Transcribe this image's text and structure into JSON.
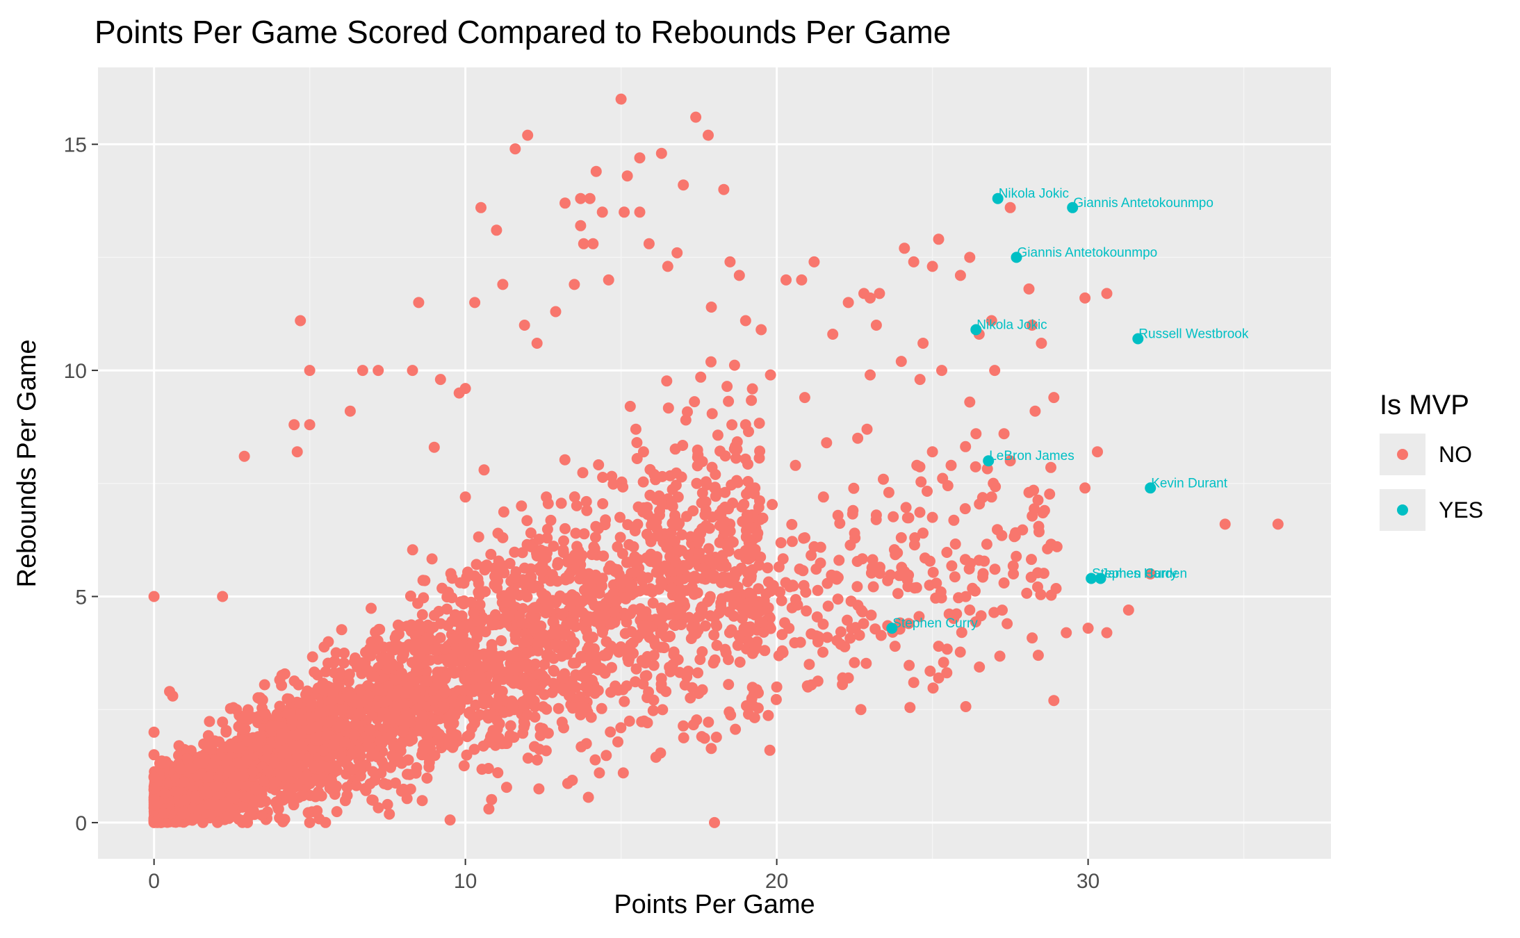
{
  "chart_data": {
    "type": "scatter",
    "title": "Points Per Game Scored Compared to Rebounds Per Game",
    "xlabel": "Points Per Game",
    "ylabel": "Rebounds Per Game",
    "xlim": [
      -1.8,
      37.8
    ],
    "ylim": [
      -0.8,
      16.7
    ],
    "x_ticks": [
      0,
      10,
      20,
      30
    ],
    "y_ticks": [
      0,
      5,
      10,
      15
    ],
    "x_tick_labels": [
      "0",
      "10",
      "20",
      "30"
    ],
    "y_tick_labels": [
      "0",
      "5",
      "10",
      "15"
    ],
    "grid": true,
    "legend": {
      "title": "Is MVP",
      "position": "right",
      "entries": [
        {
          "label": "NO",
          "color": "#F8766D"
        },
        {
          "label": "YES",
          "color": "#00BFC4"
        }
      ]
    },
    "colors": {
      "NO": "#F8766D",
      "YES": "#00BFC4",
      "panel": "#EBEBEB",
      "grid_major": "#FFFFFF",
      "grid_minor": "#F5F5F5"
    },
    "series": [
      {
        "name": "NO",
        "points": [
          [
            0,
            5.0
          ],
          [
            0,
            2.0
          ],
          [
            0,
            1.5
          ],
          [
            0,
            1.0
          ],
          [
            0,
            0.5
          ],
          [
            0,
            0.0
          ],
          [
            0.3,
            0.2
          ],
          [
            0.5,
            2.9
          ],
          [
            0.6,
            2.8
          ],
          [
            0.8,
            1.7
          ],
          [
            1.0,
            0.5
          ],
          [
            1.2,
            1.2
          ],
          [
            1.5,
            0.3
          ],
          [
            2.0,
            0.8
          ],
          [
            2.2,
            5.0
          ],
          [
            2.9,
            8.1
          ],
          [
            3.0,
            0.0
          ],
          [
            4.0,
            0.3
          ],
          [
            4.5,
            8.8
          ],
          [
            4.6,
            8.2
          ],
          [
            4.7,
            11.1
          ],
          [
            5.0,
            0.0
          ],
          [
            5.0,
            10.0
          ],
          [
            5.0,
            8.8
          ],
          [
            6.3,
            9.1
          ],
          [
            6.7,
            10.0
          ],
          [
            7.2,
            10.0
          ],
          [
            7.5,
            0.4
          ],
          [
            7.0,
            0.5
          ],
          [
            8.3,
            10.0
          ],
          [
            8.5,
            11.5
          ],
          [
            9.2,
            9.8
          ],
          [
            9.0,
            8.3
          ],
          [
            9.8,
            9.5
          ],
          [
            10.0,
            9.6
          ],
          [
            10.5,
            13.6
          ],
          [
            10.3,
            11.5
          ],
          [
            11.0,
            13.1
          ],
          [
            11.2,
            11.9
          ],
          [
            11.6,
            14.9
          ],
          [
            12.0,
            15.2
          ],
          [
            11.9,
            11.0
          ],
          [
            12.3,
            10.6
          ],
          [
            12.9,
            11.3
          ],
          [
            13.2,
            13.7
          ],
          [
            13.5,
            11.9
          ],
          [
            13.7,
            13.8
          ],
          [
            13.7,
            13.2
          ],
          [
            13.8,
            12.8
          ],
          [
            14.0,
            13.8
          ],
          [
            14.1,
            12.8
          ],
          [
            14.2,
            14.4
          ],
          [
            14.4,
            13.5
          ],
          [
            14.6,
            12.0
          ],
          [
            15.0,
            16.0
          ],
          [
            15.1,
            13.5
          ],
          [
            15.2,
            14.3
          ],
          [
            15.6,
            14.7
          ],
          [
            15.6,
            13.5
          ],
          [
            15.9,
            12.8
          ],
          [
            16.3,
            14.8
          ],
          [
            16.5,
            12.3
          ],
          [
            16.8,
            12.6
          ],
          [
            17.0,
            14.1
          ],
          [
            17.4,
            15.6
          ],
          [
            17.8,
            15.2
          ],
          [
            17.9,
            11.4
          ],
          [
            18.3,
            14.0
          ],
          [
            18.5,
            12.4
          ],
          [
            18.8,
            12.1
          ],
          [
            18.0,
            0.0
          ],
          [
            19.0,
            11.1
          ],
          [
            19.5,
            10.9
          ],
          [
            20.3,
            12.0
          ],
          [
            20.8,
            12.0
          ],
          [
            21.2,
            12.4
          ],
          [
            21.8,
            10.8
          ],
          [
            22.3,
            11.5
          ],
          [
            22.8,
            11.7
          ],
          [
            23.0,
            11.6
          ],
          [
            23.3,
            11.7
          ],
          [
            23.2,
            11.0
          ],
          [
            24.1,
            12.7
          ],
          [
            24.4,
            12.4
          ],
          [
            25.0,
            12.3
          ],
          [
            25.2,
            12.9
          ],
          [
            25.9,
            12.1
          ],
          [
            26.2,
            12.5
          ],
          [
            26.9,
            11.1
          ],
          [
            27.5,
            13.6
          ],
          [
            28.1,
            11.8
          ],
          [
            28.2,
            11.0
          ],
          [
            29.9,
            11.6
          ],
          [
            30.6,
            11.7
          ],
          [
            28.5,
            10.6
          ],
          [
            27.0,
            10.0
          ],
          [
            26.5,
            10.8
          ],
          [
            25.3,
            10.0
          ],
          [
            24.7,
            10.6
          ],
          [
            24.0,
            10.2
          ],
          [
            23.0,
            9.9
          ],
          [
            24.6,
            9.8
          ],
          [
            26.2,
            9.3
          ],
          [
            27.3,
            8.6
          ],
          [
            28.3,
            9.1
          ],
          [
            28.9,
            9.4
          ],
          [
            30.3,
            8.2
          ],
          [
            29.9,
            7.4
          ],
          [
            28.6,
            6.9
          ],
          [
            28.1,
            7.3
          ],
          [
            27.5,
            8.0
          ],
          [
            26.4,
            8.6
          ],
          [
            26.9,
            7.2
          ],
          [
            25.6,
            7.9
          ],
          [
            25.0,
            8.2
          ],
          [
            24.5,
            7.9
          ],
          [
            23.6,
            7.3
          ],
          [
            22.9,
            8.7
          ],
          [
            22.6,
            8.5
          ],
          [
            21.6,
            8.4
          ],
          [
            21.5,
            7.2
          ],
          [
            20.6,
            7.9
          ],
          [
            20.9,
            9.4
          ],
          [
            19.8,
            9.9
          ],
          [
            19.3,
            7.4
          ],
          [
            19.0,
            8.8
          ],
          [
            18.0,
            7.4
          ],
          [
            29.0,
            6.1
          ],
          [
            30.0,
            4.3
          ],
          [
            29.3,
            4.2
          ],
          [
            30.6,
            4.2
          ],
          [
            31.3,
            4.7
          ],
          [
            28.9,
            2.7
          ],
          [
            28.4,
            3.7
          ],
          [
            27.6,
            5.5
          ],
          [
            27.3,
            5.3
          ],
          [
            26.5,
            5.8
          ],
          [
            25.2,
            3.2
          ],
          [
            25.2,
            3.9
          ],
          [
            24.4,
            3.1
          ],
          [
            23.8,
            3.9
          ],
          [
            22.7,
            2.5
          ],
          [
            22.3,
            3.2
          ],
          [
            21.0,
            3.0
          ],
          [
            20.0,
            3.0
          ],
          [
            34.4,
            6.6
          ],
          [
            36.1,
            6.6
          ],
          [
            32.0,
            5.5
          ],
          [
            27.4,
            4.4
          ],
          [
            26.2,
            4.7
          ],
          [
            24.0,
            6.3
          ],
          [
            23.2,
            6.8
          ],
          [
            22.5,
            6.4
          ],
          [
            22.0,
            5.8
          ],
          [
            21.2,
            6.1
          ],
          [
            20.1,
            5.1
          ],
          [
            19.6,
            4.9
          ],
          [
            18.6,
            6.2
          ],
          [
            17.6,
            6.5
          ],
          [
            16.9,
            5.6
          ],
          [
            16.0,
            5.1
          ],
          [
            15.4,
            6.1
          ],
          [
            14.6,
            5.6
          ],
          [
            13.9,
            6.9
          ],
          [
            13.2,
            6.5
          ],
          [
            12.6,
            7.2
          ],
          [
            11.8,
            7.0
          ],
          [
            11.2,
            6.3
          ],
          [
            10.6,
            7.8
          ],
          [
            10.0,
            7.2
          ]
        ]
      },
      {
        "name": "YES",
        "points": [
          [
            27.1,
            13.8
          ],
          [
            29.5,
            13.6
          ],
          [
            27.7,
            12.5
          ],
          [
            26.4,
            10.9
          ],
          [
            31.6,
            10.7
          ],
          [
            26.8,
            8.0
          ],
          [
            32.0,
            7.4
          ],
          [
            30.1,
            5.4
          ],
          [
            30.4,
            5.4
          ],
          [
            23.7,
            4.3
          ]
        ]
      }
    ],
    "annotations": [
      {
        "text": "Nikola Jokic",
        "x": 27.1,
        "y": 13.8
      },
      {
        "text": "Giannis Antetokounmpo",
        "x": 29.5,
        "y": 13.6
      },
      {
        "text": "Giannis Antetokounmpo",
        "x": 27.7,
        "y": 12.5
      },
      {
        "text": "Nikola Jokic",
        "x": 26.4,
        "y": 10.9
      },
      {
        "text": "Russell Westbrook",
        "x": 31.6,
        "y": 10.7
      },
      {
        "text": "LeBron James",
        "x": 26.8,
        "y": 8.0
      },
      {
        "text": "Kevin Durant",
        "x": 32.0,
        "y": 7.4
      },
      {
        "text": "Stephen Curry",
        "x": 30.1,
        "y": 5.4
      },
      {
        "text": "James Harden",
        "x": 30.4,
        "y": 5.4
      },
      {
        "text": "Stephen Curry",
        "x": 23.7,
        "y": 4.3
      }
    ]
  }
}
